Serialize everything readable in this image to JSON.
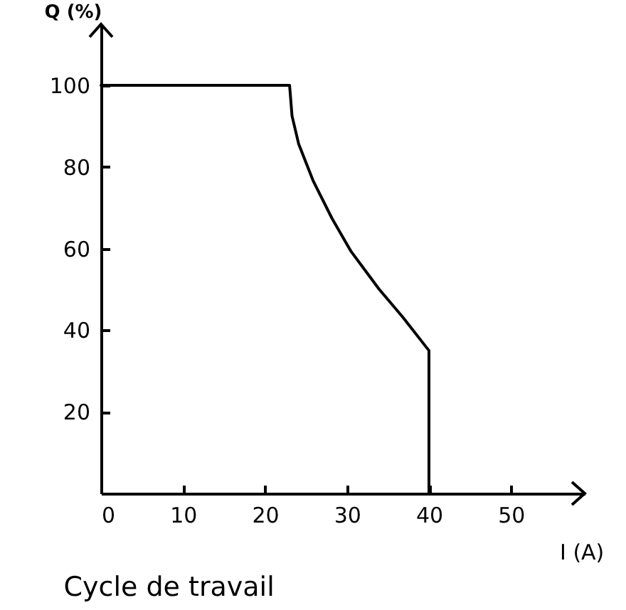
{
  "chart_data": {
    "type": "line",
    "title": "Cycle de travail",
    "xlabel": "I (A)",
    "ylabel": "Q (%)",
    "x": [
      0,
      23,
      23.3,
      24.1,
      25.9,
      28.2,
      30.5,
      33.9,
      36.8,
      40,
      40
    ],
    "series": [
      {
        "color": "#000000",
        "values": [
          100,
          100,
          92.5,
          85.7,
          76.5,
          67.3,
          59.3,
          50.1,
          43.2,
          35,
          0
        ]
      }
    ],
    "xlim": [
      0,
      59
    ],
    "ylim": [
      0,
      115
    ],
    "xticks": [
      0,
      10,
      20,
      30,
      40,
      50
    ],
    "yticks": [
      20,
      40,
      60,
      80,
      100
    ],
    "grid": false,
    "line_style": "solid",
    "marker": "none"
  }
}
